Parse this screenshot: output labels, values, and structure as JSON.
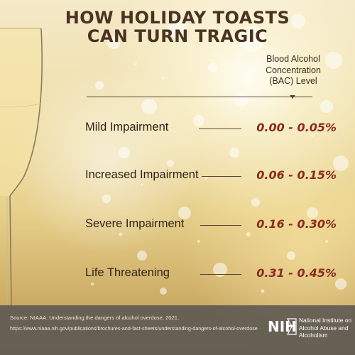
{
  "title": "HOW HOLIDAY TOASTS CAN TURN TRAGIC",
  "bac_header": "Blood Alcohol Concentration (BAC) Level",
  "levels": [
    {
      "label": "Mild Impairment",
      "range": "0.00 - 0.05%"
    },
    {
      "label": "Increased Impairment",
      "range": "0.06 - 0.15%"
    },
    {
      "label": "Severe Impairment",
      "range": "0.16 - 0.30%"
    },
    {
      "label": "Life Threatening",
      "range": "0.31 - 0.45%"
    }
  ],
  "footer": {
    "source": "Source: NIAAA. Understanding the dangers of alcohol overdose, 2021.",
    "url": "https://www.niaaa.nih.gov/publications/brochures-and-fact-sheets/understanding-dangers-of-alcohol-overdose",
    "logo_text": "NIH",
    "institute": "National Institute on Alcohol Abuse and Alcoholism"
  },
  "colors": {
    "title": "#4a3322",
    "range": "#8b2a1e",
    "footer_bg": "#5a5652"
  }
}
